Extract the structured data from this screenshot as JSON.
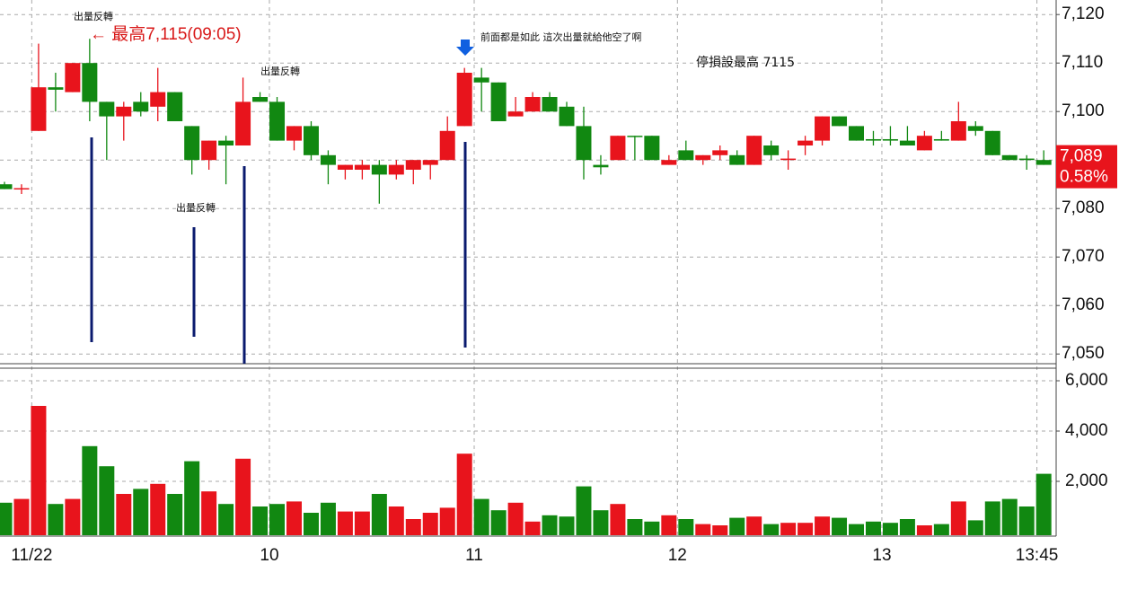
{
  "chart_data": {
    "type": "candlestick",
    "up_color": "#e8141c",
    "down_color": "#118811",
    "annotations": [
      "出量反轉",
      "← 最高7,115(09:05)",
      "出量反轉",
      "出量反轉",
      "前面都是如此 這次出量就給他空了啊",
      "停損設最高 7115"
    ],
    "open": [
      7085,
      7084,
      7096,
      7105,
      7104,
      7110,
      7102,
      7099,
      7102,
      7101,
      7104,
      7097,
      7090,
      7094,
      7093,
      7103,
      7102,
      7094,
      7097,
      7091,
      7088,
      7088,
      7089,
      7087,
      7088,
      7089,
      7090,
      7097,
      7107,
      7106,
      7099,
      7100,
      7103,
      7101,
      7097,
      7089,
      7090,
      7095,
      7095,
      7089,
      7092,
      7090,
      7091,
      7091,
      7089,
      7093,
      7090,
      7093,
      7094,
      7099,
      7097,
      7094.3,
      7094.3,
      7094,
      7092,
      7094.3,
      7094,
      7097,
      7096,
      7091,
      7090.3,
      7090
    ],
    "high": [
      7085.5,
      7085,
      7114,
      7108,
      7110,
      7115,
      7102,
      7102,
      7104,
      7109,
      7104,
      7097,
      7094,
      7095,
      7107,
      7104,
      7103,
      7097,
      7098,
      7092,
      7089,
      7090,
      7090,
      7090,
      7090,
      7090,
      7099,
      7109,
      7109,
      7106,
      7103,
      7104,
      7104,
      7102,
      7101,
      7091,
      7095,
      7095,
      7095,
      7091,
      7094,
      7091,
      7093,
      7092,
      7095,
      7094,
      7092,
      7095,
      7099,
      7099,
      7097,
      7096,
      7097,
      7097,
      7096,
      7096,
      7102,
      7098,
      7096,
      7091,
      7091,
      7092
    ],
    "low": [
      7084,
      7083,
      7096,
      7100,
      7104,
      7098,
      7090,
      7094,
      7099,
      7098,
      7098,
      7087,
      7088,
      7085,
      7093,
      7102,
      7094,
      7092,
      7090,
      7085,
      7086,
      7086,
      7081,
      7086,
      7085,
      7086,
      7090,
      7097,
      7100,
      7098,
      7099,
      7100,
      7100,
      7097,
      7086,
      7087,
      7090,
      7090,
      7090,
      7089,
      7090,
      7089,
      7090,
      7089,
      7089,
      7090,
      7088,
      7091,
      7093,
      7097,
      7094,
      7093,
      7093,
      7093,
      7092,
      7094,
      7094,
      7095,
      7091,
      7090,
      7088,
      7089
    ],
    "close": [
      7084,
      7084.2,
      7105,
      7104.5,
      7110,
      7102,
      7099,
      7101,
      7100,
      7104,
      7098,
      7090,
      7094,
      7093,
      7102,
      7102,
      7094,
      7097,
      7091,
      7089,
      7089,
      7089,
      7087,
      7089,
      7090,
      7090,
      7096,
      7108,
      7106,
      7098,
      7100,
      7103,
      7100,
      7097,
      7090,
      7088.5,
      7095,
      7094.8,
      7090,
      7090,
      7090,
      7091,
      7092,
      7089,
      7095,
      7091,
      7090.3,
      7094,
      7099,
      7097,
      7094,
      7094,
      7094,
      7093,
      7095,
      7094,
      7098,
      7096,
      7091,
      7090,
      7090,
      7089
    ],
    "volume": [
      1150,
      1300,
      5000,
      1100,
      1300,
      3400,
      2600,
      1500,
      1700,
      1900,
      1500,
      2800,
      1600,
      1100,
      2900,
      1000,
      1100,
      1200,
      750,
      1150,
      800,
      800,
      1500,
      1000,
      500,
      750,
      950,
      3100,
      1300,
      850,
      1150,
      400,
      650,
      600,
      1800,
      850,
      1100,
      500,
      400,
      650,
      500,
      300,
      250,
      550,
      600,
      300,
      350,
      350,
      600,
      550,
      300,
      400,
      350,
      500,
      250,
      300,
      1200,
      450,
      1200,
      1300,
      1000,
      2300
    ],
    "ylim": [
      7048,
      7123
    ],
    "yticks": [
      {
        "value": 7050,
        "label": "7,050"
      },
      {
        "value": 7060,
        "label": "7,060"
      },
      {
        "value": 7070,
        "label": "7,070"
      },
      {
        "value": 7080,
        "label": "7,080"
      },
      {
        "value": 7090,
        "label": "7,090"
      },
      {
        "value": 7100,
        "label": "7,100"
      },
      {
        "value": 7110,
        "label": "7,110"
      },
      {
        "value": 7120,
        "label": "7,120"
      }
    ],
    "y2lim": [
      0,
      6500
    ],
    "y2ticks": [
      {
        "value": 2000,
        "label": "2,000"
      },
      {
        "value": 4000,
        "label": "4,000"
      },
      {
        "value": 6000,
        "label": "6,000"
      }
    ],
    "xticks": [
      {
        "value": 1.6,
        "label": "11/22"
      },
      {
        "value": 15.55,
        "label": "10"
      },
      {
        "value": 27.57,
        "label": "11"
      },
      {
        "value": 39.5,
        "label": "12"
      },
      {
        "value": 51.5,
        "label": "13"
      },
      {
        "value": 60.6,
        "label": "13:45"
      }
    ],
    "last_price": {
      "value": 7089,
      "label": "7,089"
    },
    "change_label": "0.58%",
    "grid": true
  }
}
